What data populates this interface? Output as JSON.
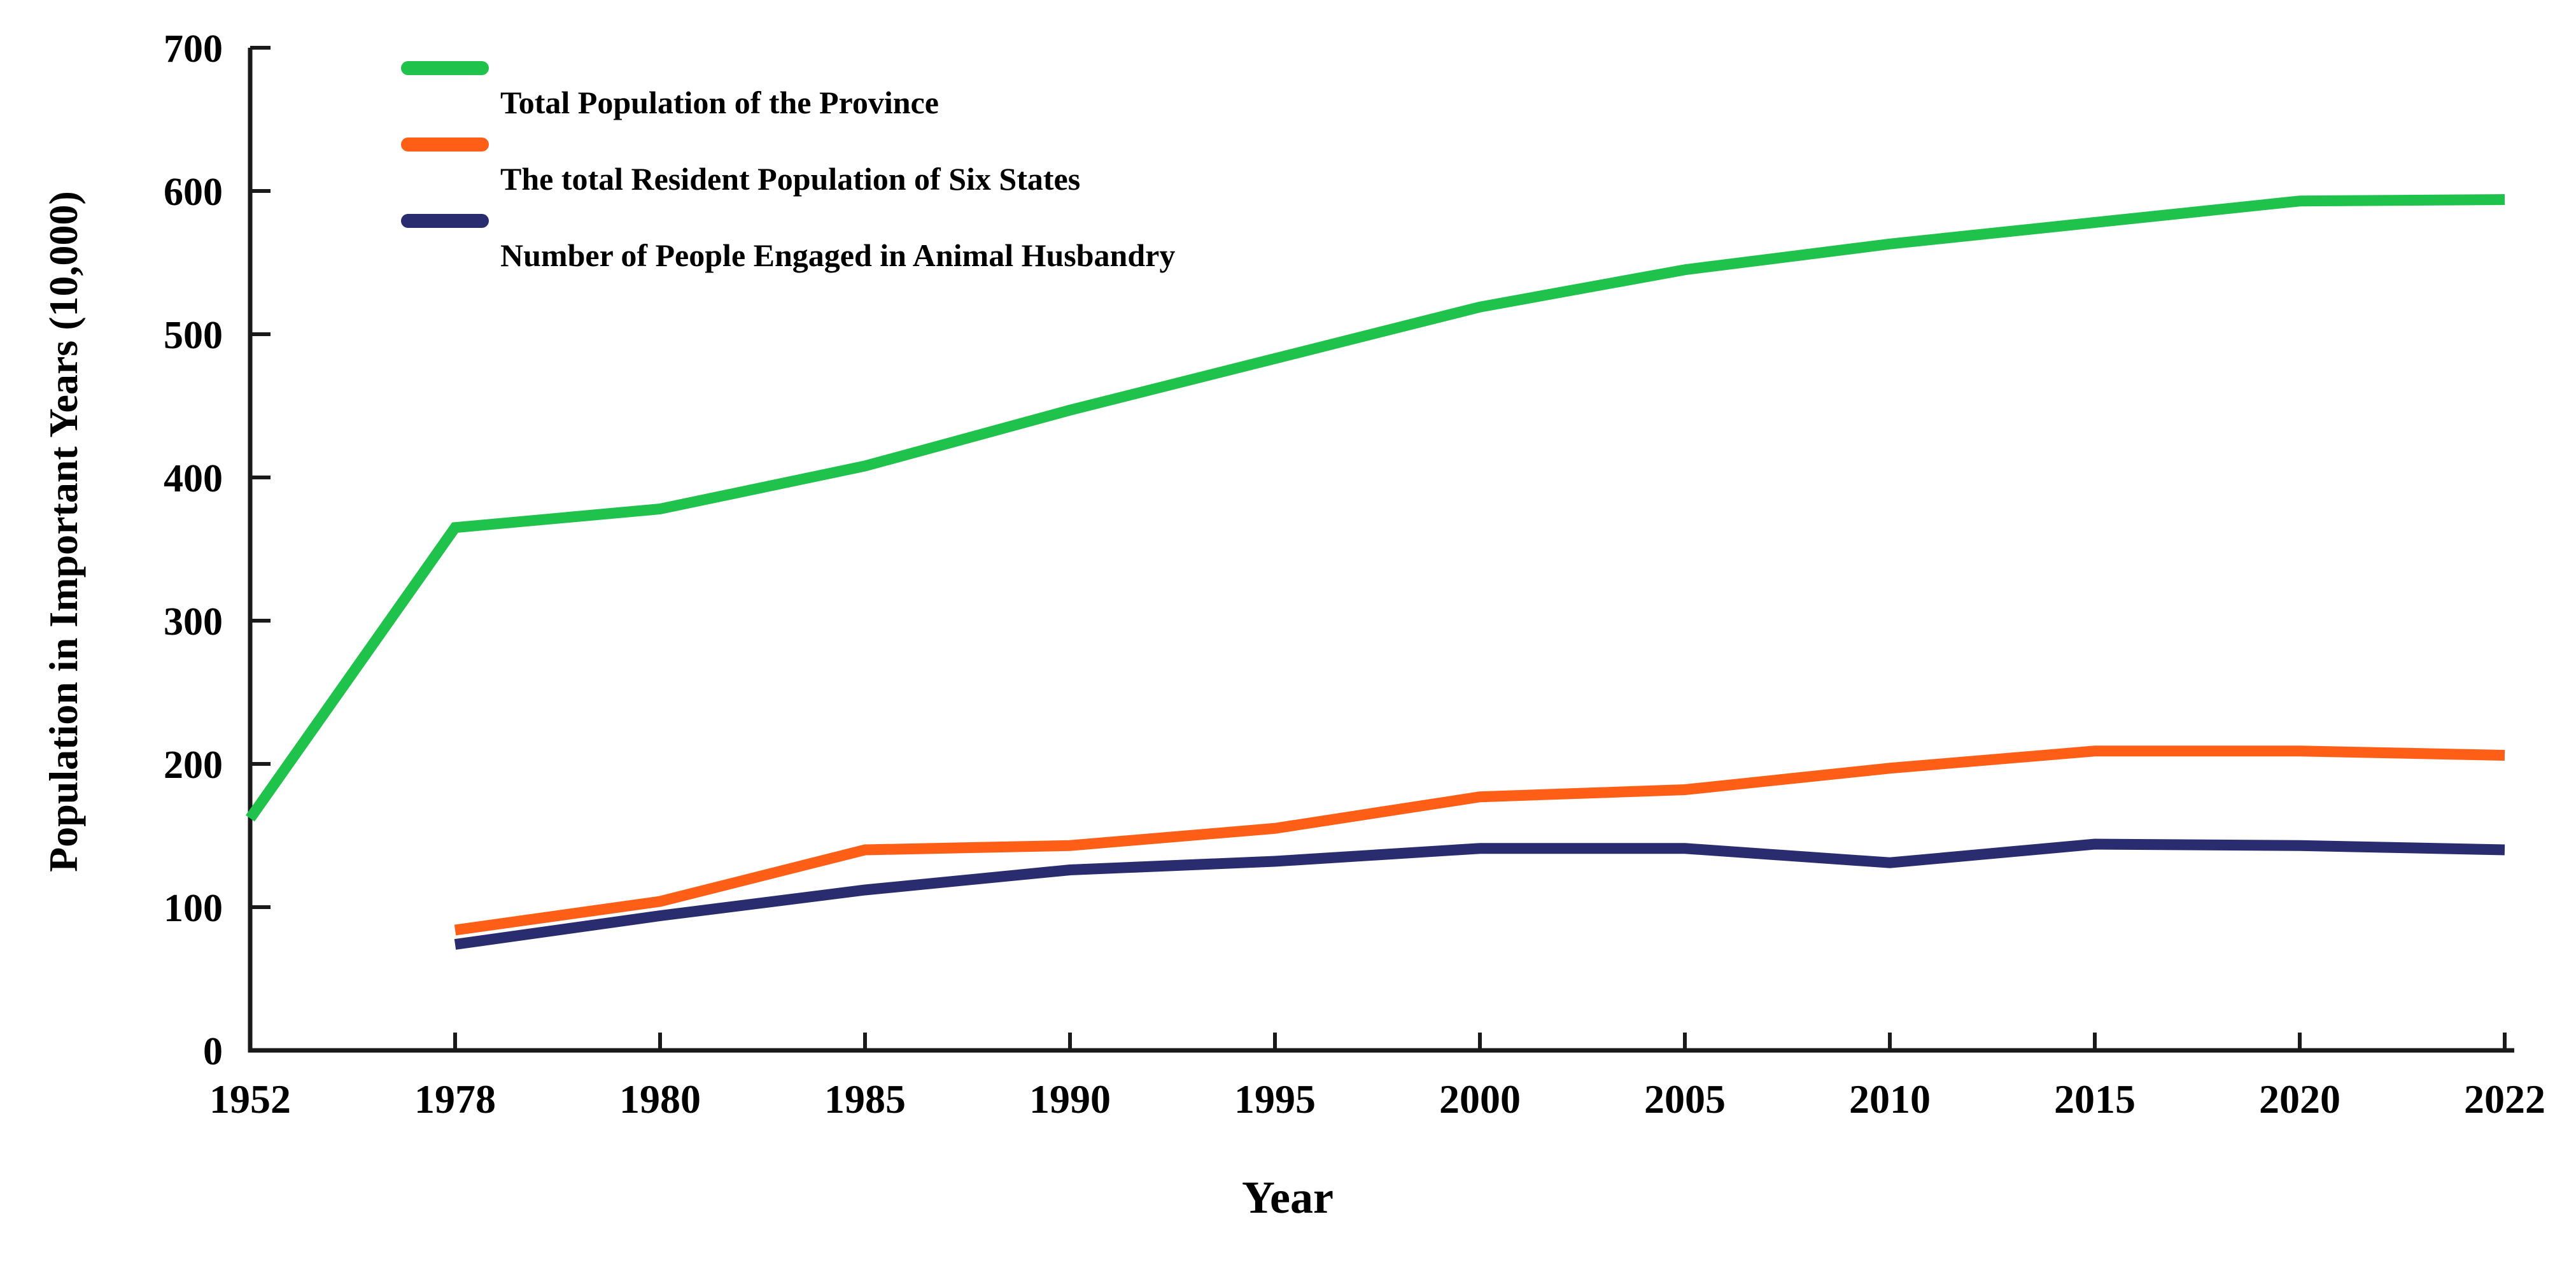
{
  "chart_data": {
    "type": "line",
    "title": "",
    "xlabel": "Year",
    "ylabel": "Population in Important Years (10,000)",
    "categories": [
      "1952",
      "1978",
      "1980",
      "1985",
      "1990",
      "1995",
      "2000",
      "2005",
      "2010",
      "2015",
      "2020",
      "2022"
    ],
    "ylim": [
      0,
      700
    ],
    "y_ticks": [
      0,
      100,
      200,
      300,
      400,
      500,
      600,
      700
    ],
    "grid": false,
    "legend_position": "top-left-inside",
    "axis_color": "#1a1a1a",
    "series": [
      {
        "name": "Total Population of the Province",
        "color": "#1fc24a",
        "values": [
          162,
          365,
          378,
          408,
          447,
          483,
          519,
          545,
          563,
          578,
          593,
          594
        ]
      },
      {
        "name": "The total Resident Population of Six States",
        "color": "#ff5e17",
        "values": [
          null,
          84,
          104,
          140,
          143,
          155,
          177,
          182,
          197,
          209,
          209,
          206
        ]
      },
      {
        "name": "Number of People Engaged in Animal Husbandry",
        "color": "#292d70",
        "values": [
          null,
          74,
          94,
          112,
          126,
          132,
          141,
          141,
          131,
          144,
          143,
          140
        ]
      }
    ]
  }
}
